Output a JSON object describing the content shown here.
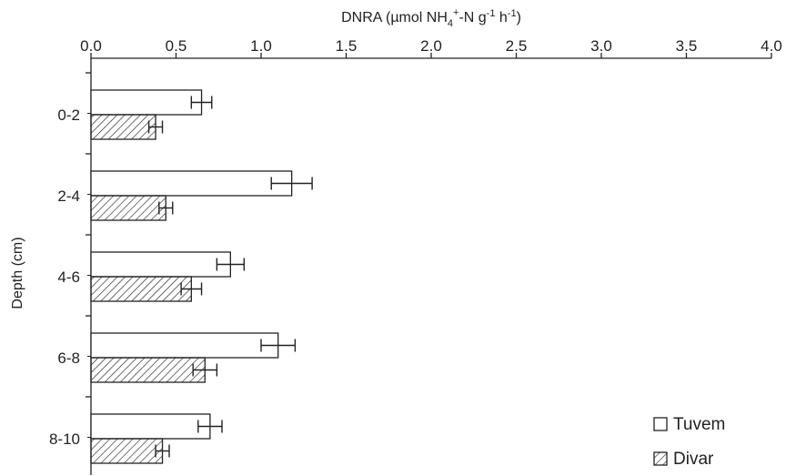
{
  "chart_data": {
    "type": "bar",
    "orientation": "horizontal",
    "title": "",
    "xlabel": {
      "prefix": "DNRA (µmol  NH",
      "sub": "4",
      "sup1": "+",
      "mid": "-N g",
      "sup2": "-1",
      "mid2": " h",
      "sup3": "-1",
      "suffix": ")"
    },
    "ylabel": "Depth (cm)",
    "xaxis_position": "top",
    "xlim": [
      0,
      4.0
    ],
    "xticks": [
      "0.0",
      "0.5",
      "1.0",
      "1.5",
      "2.0",
      "2.5",
      "3.0",
      "3.5",
      "4.0"
    ],
    "categories": [
      "0-2",
      "2-4",
      "4-6",
      "6-8",
      "8-10"
    ],
    "series": [
      {
        "name": "Tuvem",
        "fill": "white",
        "values": [
          0.65,
          1.18,
          0.82,
          1.1,
          0.7
        ],
        "errors": [
          0.06,
          0.12,
          0.08,
          0.1,
          0.07
        ]
      },
      {
        "name": "Divar",
        "fill": "hatched",
        "values": [
          0.38,
          0.44,
          0.59,
          0.67,
          0.42
        ],
        "errors": [
          0.04,
          0.04,
          0.06,
          0.07,
          0.04
        ]
      }
    ],
    "legend_position": "bottom-right",
    "grid": false
  }
}
